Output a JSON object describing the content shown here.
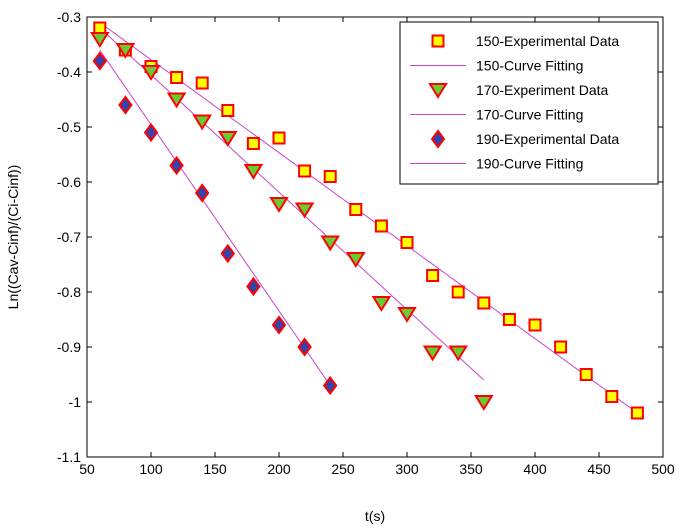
{
  "chart_data": {
    "type": "scatter",
    "title": "",
    "xlabel": "t(s)",
    "ylabel": "Ln((Cav-Cinf)/(Ci-Cinf))",
    "xlim": [
      50,
      500
    ],
    "ylim": [
      -1.1,
      -0.3
    ],
    "x_ticks": [
      50,
      100,
      150,
      200,
      250,
      300,
      350,
      400,
      450,
      500
    ],
    "y_ticks": [
      -0.3,
      -0.4,
      -0.5,
      -0.6,
      -0.7,
      -0.8,
      -0.9,
      -1,
      -1.1
    ],
    "grid": false,
    "legend_position": "top-right",
    "series": [
      {
        "name": "150-Experimental Data",
        "kind": "markers",
        "marker": "square",
        "face_color": "#ffff00",
        "edge_color": "#ff0000",
        "x": [
          60,
          80,
          100,
          120,
          140,
          160,
          180,
          200,
          220,
          240,
          260,
          280,
          300,
          320,
          340,
          360,
          380,
          400,
          420,
          440,
          460,
          480
        ],
        "y": [
          -0.32,
          -0.36,
          -0.39,
          -0.41,
          -0.42,
          -0.47,
          -0.53,
          -0.52,
          -0.58,
          -0.59,
          -0.65,
          -0.68,
          -0.71,
          -0.77,
          -0.8,
          -0.82,
          -0.85,
          -0.86,
          -0.9,
          -0.95,
          -0.99,
          -1.02
        ]
      },
      {
        "name": "150-Curve Fitting",
        "kind": "line",
        "color": "#cc44cc",
        "x": [
          60,
          480
        ],
        "y": [
          -0.31,
          -1.02
        ]
      },
      {
        "name": "170-Experiment Data",
        "kind": "markers",
        "marker": "triangle-down",
        "face_color": "#66cc33",
        "edge_color": "#ff0000",
        "x": [
          60,
          80,
          100,
          120,
          140,
          160,
          180,
          200,
          220,
          240,
          260,
          280,
          300,
          320,
          340,
          360
        ],
        "y": [
          -0.34,
          -0.36,
          -0.4,
          -0.45,
          -0.49,
          -0.52,
          -0.58,
          -0.64,
          -0.65,
          -0.71,
          -0.74,
          -0.82,
          -0.84,
          -0.91,
          -0.91,
          -1
        ]
      },
      {
        "name": "170-Curve Fitting",
        "kind": "line",
        "color": "#cc44cc",
        "x": [
          60,
          360
        ],
        "y": [
          -0.32,
          -0.96
        ]
      },
      {
        "name": "190-Experimental Data",
        "kind": "markers",
        "marker": "diamond",
        "face_color": "#3344aa",
        "edge_color": "#ff0000",
        "x": [
          60,
          80,
          100,
          120,
          140,
          160,
          180,
          200,
          220,
          240
        ],
        "y": [
          -0.38,
          -0.46,
          -0.51,
          -0.57,
          -0.62,
          -0.73,
          -0.79,
          -0.86,
          -0.9,
          -0.97
        ]
      },
      {
        "name": "190-Curve Fitting",
        "kind": "line",
        "color": "#cc44cc",
        "x": [
          60,
          240
        ],
        "y": [
          -0.36,
          -0.97
        ]
      }
    ]
  }
}
